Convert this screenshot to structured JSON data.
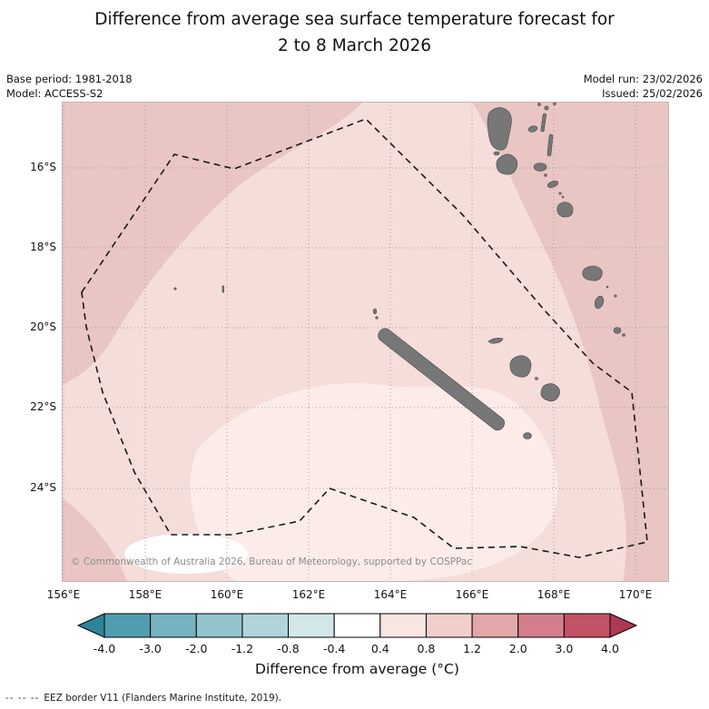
{
  "header": {
    "title_line1": "Difference from average sea surface temperature forecast for",
    "title_line2": "2 to 8 March 2026",
    "base_period": "Base period: 1981-2018",
    "model": "Model: ACCESS-S2",
    "model_run": "Model run: 23/02/2026",
    "issued": "Issued: 25/02/2026"
  },
  "map": {
    "lat_labels": [
      "16°S",
      "18°S",
      "20°S",
      "22°S",
      "24°S"
    ],
    "lon_labels": [
      "156°E",
      "158°E",
      "160°E",
      "162°E",
      "164°E",
      "166°E",
      "168°E",
      "170°E"
    ],
    "copyright": "© Commonwealth of Australia 2026, Bureau of Meteorology, supported by COSPPac",
    "band_colors": {
      "plus_0_8_to_1_2": "#e9c6c3",
      "plus_0_4_to_0_8": "#f5ddda",
      "plus_0_0_to_0_4": "#fbecea",
      "near_zero_white": "#ffffff"
    },
    "land_color": "#777777",
    "eez_border_color": "#1a1a1a"
  },
  "colorbar": {
    "label": "Difference from average (°C)",
    "tick_labels": [
      "-4.0",
      "-3.0",
      "-2.0",
      "-1.2",
      "-0.8",
      "-0.4",
      "0.4",
      "0.8",
      "1.2",
      "2.0",
      "3.0",
      "4.0"
    ],
    "segment_colors": [
      "#4f9dae",
      "#74b3bf",
      "#93c4cd",
      "#b1d4da",
      "#d3e7e9",
      "#ffffff",
      "#f8e6e3",
      "#f0cfcb",
      "#e2a7a8",
      "#d47e8d",
      "#c25266"
    ],
    "arrow_left_color": "#2f8398",
    "arrow_right_color": "#ad3a55"
  },
  "footer": {
    "dashes": "--  --  --",
    "eez_note": "EEZ border V11 (Flanders Marine Institute, 2019)."
  },
  "map_data": {
    "type": "filled-contour anomaly map",
    "variable": "Sea surface temperature difference from average (°C)",
    "forecast_period": "2 to 8 March 2026",
    "lon_axis_deg_east": [
      156,
      158,
      160,
      162,
      164,
      166,
      168,
      170
    ],
    "lat_axis_deg_south": [
      16,
      18,
      20,
      22,
      24
    ],
    "anomaly_summary": [
      {
        "region": "outer edges west, north and east of the EEZ (incl. Vanuatu waters)",
        "band_degc": "+0.8 to +1.2"
      },
      {
        "region": "most of the New Caledonia EEZ interior",
        "band_degc": "+0.4 to +0.8"
      },
      {
        "region": "south-central area southwest of Grande Terre",
        "band_degc": "0.0 to +0.4"
      },
      {
        "region": "small patch near 158-160°E, 25°S",
        "band_degc": "near 0"
      }
    ]
  }
}
